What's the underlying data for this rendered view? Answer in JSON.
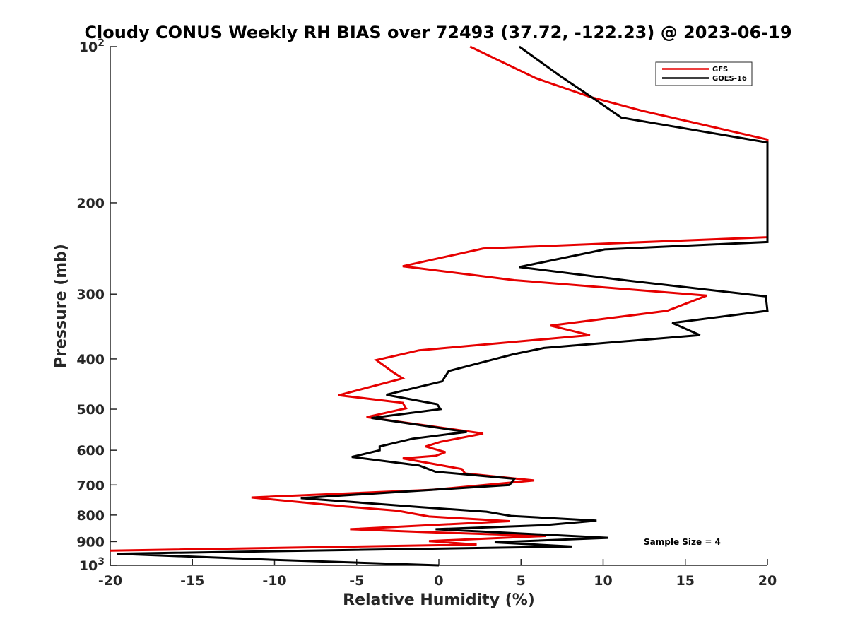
{
  "chart_data": {
    "type": "line",
    "title": "Cloudy CONUS Weekly RH BIAS over 72493 (37.72, -122.23) @ 2023-06-19",
    "xlabel": "Relative Humidity (%)",
    "ylabel": "Pressure (mb)",
    "xlim": [
      -20,
      20
    ],
    "ylim": [
      100,
      1000
    ],
    "y_scale": "log",
    "y_reversed": true,
    "grid": false,
    "x_ticks": [
      "-20",
      "-15",
      "-10",
      "-5",
      "0",
      "5",
      "10",
      "15",
      "20"
    ],
    "x_tick_values": [
      -20,
      -15,
      -10,
      -5,
      0,
      5,
      10,
      15,
      20
    ],
    "y_tick_values": [
      100,
      200,
      300,
      400,
      500,
      600,
      700,
      800,
      900,
      1000
    ],
    "y_ticks": [
      {
        "base": "10",
        "exp": "2"
      },
      {
        "base": "200",
        "exp": ""
      },
      {
        "base": "300",
        "exp": ""
      },
      {
        "base": "400",
        "exp": ""
      },
      {
        "base": "500",
        "exp": ""
      },
      {
        "base": "600",
        "exp": ""
      },
      {
        "base": "700",
        "exp": ""
      },
      {
        "base": "800",
        "exp": ""
      },
      {
        "base": "900",
        "exp": ""
      },
      {
        "base": "10",
        "exp": "3"
      }
    ],
    "legend_position": "top-right",
    "annotation": "Sample Size = 4",
    "series": [
      {
        "name": "GFS",
        "color": "#e60000",
        "points": [
          [
            1.9,
            100
          ],
          [
            5.9,
            115
          ],
          [
            9.2,
            125
          ],
          [
            12.4,
            133
          ],
          [
            20,
            151
          ],
          [
            20,
            233
          ],
          [
            2.7,
            245
          ],
          [
            -2.2,
            265
          ],
          [
            4.6,
            282
          ],
          [
            16.3,
            302
          ],
          [
            13.9,
            323
          ],
          [
            6.8,
            345
          ],
          [
            9.2,
            360
          ],
          [
            -1.2,
            385
          ],
          [
            -3.8,
            402
          ],
          [
            -2.8,
            424
          ],
          [
            -2.2,
            436
          ],
          [
            -6.1,
            470
          ],
          [
            -2.2,
            486
          ],
          [
            -2,
            498
          ],
          [
            -4.4,
            518
          ],
          [
            2.7,
            557
          ],
          [
            0.1,
            578
          ],
          [
            -0.8,
            590
          ],
          [
            0.4,
            605
          ],
          [
            -0.2,
            615
          ],
          [
            -2.2,
            622
          ],
          [
            1.4,
            652
          ],
          [
            1.6,
            665
          ],
          [
            5.8,
            686
          ],
          [
            -0.4,
            715
          ],
          [
            -11.4,
            740
          ],
          [
            -5.7,
            770
          ],
          [
            -2.5,
            785
          ],
          [
            -0.6,
            805
          ],
          [
            4.3,
            822
          ],
          [
            -5.4,
            852
          ],
          [
            -0.8,
            863
          ],
          [
            6.5,
            878
          ],
          [
            -0.6,
            898
          ],
          [
            2.3,
            912
          ],
          [
            -20,
            937
          ]
        ]
      },
      {
        "name": "GOES-16",
        "color": "#000000",
        "points": [
          [
            4.9,
            100
          ],
          [
            7.4,
            114
          ],
          [
            9.6,
            127
          ],
          [
            11.1,
            137
          ],
          [
            20,
            153
          ],
          [
            20,
            238
          ],
          [
            10.1,
            246
          ],
          [
            4.9,
            266
          ],
          [
            11.3,
            282
          ],
          [
            19.9,
            303
          ],
          [
            20,
            323
          ],
          [
            14.2,
            341
          ],
          [
            15.9,
            360
          ],
          [
            6.4,
            381
          ],
          [
            4.5,
            392
          ],
          [
            0.6,
            422
          ],
          [
            0.2,
            442
          ],
          [
            -3.2,
            469
          ],
          [
            -0.1,
            489
          ],
          [
            0.1,
            500
          ],
          [
            -4.1,
            520
          ],
          [
            1.7,
            553
          ],
          [
            -1.6,
            570
          ],
          [
            -3.6,
            590
          ],
          [
            -3.6,
            600
          ],
          [
            -5.3,
            618
          ],
          [
            -1.2,
            642
          ],
          [
            -0.2,
            660
          ],
          [
            4.6,
            681
          ],
          [
            4.3,
            700
          ],
          [
            -8.4,
            742
          ],
          [
            -1.2,
            772
          ],
          [
            2.9,
            788
          ],
          [
            4.4,
            803
          ],
          [
            9.6,
            820
          ],
          [
            6.4,
            837
          ],
          [
            -0.2,
            852
          ],
          [
            10.3,
            885
          ],
          [
            3.4,
            903
          ],
          [
            8.1,
            920
          ],
          [
            -19.6,
            950
          ],
          [
            -10.4,
            975
          ],
          [
            0,
            1000
          ]
        ]
      }
    ]
  }
}
